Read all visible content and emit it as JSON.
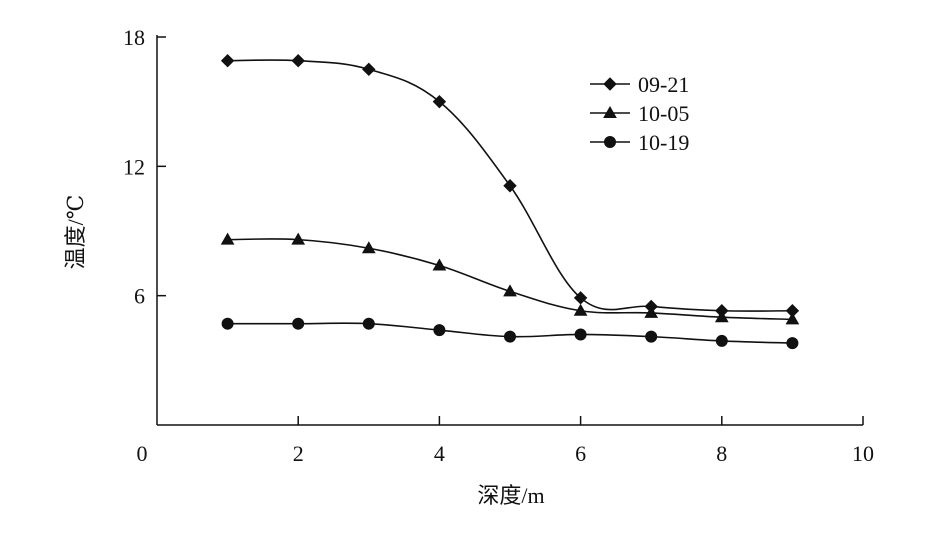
{
  "chart_data": {
    "type": "line",
    "xlabel": "深度/m",
    "ylabel": "温度/℃",
    "xlim": [
      0,
      10
    ],
    "ylim": [
      0,
      18
    ],
    "x_ticks": [
      0,
      2,
      4,
      6,
      8,
      10
    ],
    "y_ticks": [
      6,
      12,
      18
    ],
    "x_tick_labels": [
      "0",
      "2",
      "4",
      "6",
      "8",
      "10"
    ],
    "y_tick_labels": [
      "6",
      "12",
      "18"
    ],
    "grid": false,
    "legend_position": "top-right",
    "x": [
      1,
      2,
      3,
      4,
      5,
      6,
      7,
      8,
      9
    ],
    "series": [
      {
        "name": "09-21",
        "marker": "diamond",
        "values": [
          16.9,
          16.9,
          16.5,
          15.0,
          11.1,
          5.9,
          5.5,
          5.3,
          5.3
        ]
      },
      {
        "name": "10-05",
        "marker": "triangle",
        "values": [
          8.6,
          8.6,
          8.2,
          7.4,
          6.2,
          5.3,
          5.2,
          5.0,
          4.9
        ]
      },
      {
        "name": "10-19",
        "marker": "circle",
        "values": [
          4.7,
          4.7,
          4.7,
          4.4,
          4.1,
          4.2,
          4.1,
          3.9,
          3.8
        ]
      }
    ]
  }
}
